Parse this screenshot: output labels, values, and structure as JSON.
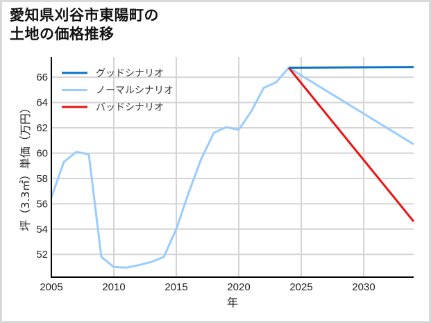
{
  "title": {
    "line1": "愛知県刈谷市東陽町の",
    "line2": "土地の価格推移"
  },
  "colors": {
    "good": "#0a72c8",
    "normal": "#99ccff",
    "bad": "#ee1111",
    "grid": "#d4d4d4",
    "frame": "#d9d9d9",
    "axis": "#000000"
  },
  "chart_data": {
    "type": "line",
    "title": "愛知県刈谷市東陽町の土地の価格推移",
    "xlabel": "年",
    "ylabel": "坪（3.3㎡）単価（万円）",
    "xlim": [
      2005,
      2034
    ],
    "ylim": [
      50.2,
      67.6
    ],
    "xticks": [
      2005,
      2010,
      2015,
      2020,
      2025,
      2030
    ],
    "yticks": [
      52,
      54,
      56,
      58,
      60,
      62,
      64,
      66
    ],
    "grid": true,
    "legend_position": "upper left",
    "series": [
      {
        "name": "グッドシナリオ",
        "color": "#0a72c8",
        "x": [
          2024,
          2034
        ],
        "y": [
          66.75,
          66.8
        ]
      },
      {
        "name": "ノーマルシナリオ",
        "color": "#99ccff",
        "x": [
          2005,
          2006,
          2007,
          2008,
          2009,
          2010,
          2011,
          2012,
          2013,
          2014,
          2015,
          2016,
          2017,
          2018,
          2019,
          2020,
          2021,
          2022,
          2023,
          2024,
          2034
        ],
        "y": [
          56.5,
          59.3,
          60.1,
          59.9,
          51.8,
          51.0,
          50.95,
          51.15,
          51.4,
          51.8,
          54.0,
          56.9,
          59.55,
          61.6,
          62.05,
          61.85,
          63.3,
          65.15,
          65.6,
          66.75,
          60.7
        ]
      },
      {
        "name": "バッドシナリオ",
        "color": "#ee1111",
        "x": [
          2024,
          2034
        ],
        "y": [
          66.75,
          54.6
        ]
      }
    ]
  }
}
